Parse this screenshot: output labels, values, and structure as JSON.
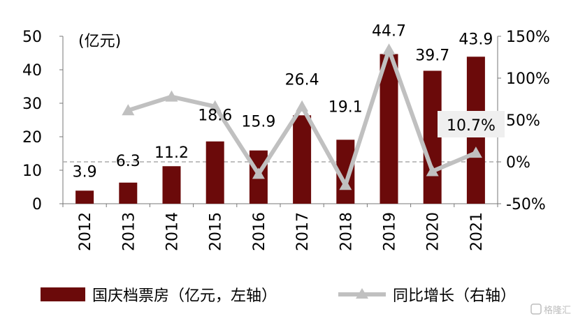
{
  "chart_data": {
    "type": "bar",
    "categories": [
      "2012",
      "2013",
      "2014",
      "2015",
      "2016",
      "2017",
      "2018",
      "2019",
      "2020",
      "2021"
    ],
    "series": [
      {
        "name": "国庆档票房（亿元，左轴）",
        "type": "bar",
        "axis": "left",
        "values": [
          3.9,
          6.3,
          11.2,
          18.6,
          15.9,
          26.4,
          19.1,
          44.7,
          39.7,
          43.9
        ],
        "labels": [
          "3.9",
          "6.3",
          "11.2",
          "18.6",
          "15.9",
          "26.4",
          "19.1",
          "44.7",
          "39.7",
          "43.9"
        ],
        "color": "#6b0a0a"
      },
      {
        "name": "同比增长（右轴）",
        "type": "line",
        "axis": "right",
        "values": [
          null,
          61.5,
          77.8,
          66.1,
          -14.5,
          66.0,
          -27.7,
          134.0,
          -11.2,
          10.7
        ],
        "color": "#c0c0c0"
      }
    ],
    "annotation": "10.7%",
    "unit_label": "(亿元)",
    "y_left": {
      "range": [
        0,
        50
      ],
      "ticks": [
        "0",
        "10",
        "20",
        "30",
        "40",
        "50"
      ]
    },
    "y_right": {
      "range": [
        -50,
        150
      ],
      "ticks": [
        "-50%",
        "0%",
        "50%",
        "100%",
        "150%"
      ]
    },
    "zero_line": "dashed",
    "grid": false,
    "legend_position": "bottom"
  },
  "watermark": "格隆汇"
}
